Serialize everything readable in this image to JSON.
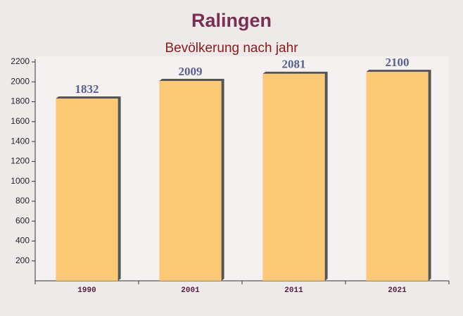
{
  "chart_data": {
    "type": "bar",
    "title": "Ralingen",
    "subtitle": "Bevölkerung nach jahr",
    "categories": [
      "1990",
      "2001",
      "2011",
      "2021"
    ],
    "values": [
      1832,
      2009,
      2081,
      2100
    ],
    "color": "#fcc468",
    "ylim": [
      0,
      2200
    ],
    "yticks": [
      200,
      400,
      600,
      800,
      1000,
      1200,
      1400,
      1600,
      1800,
      2000,
      2200
    ],
    "grid": false
  }
}
